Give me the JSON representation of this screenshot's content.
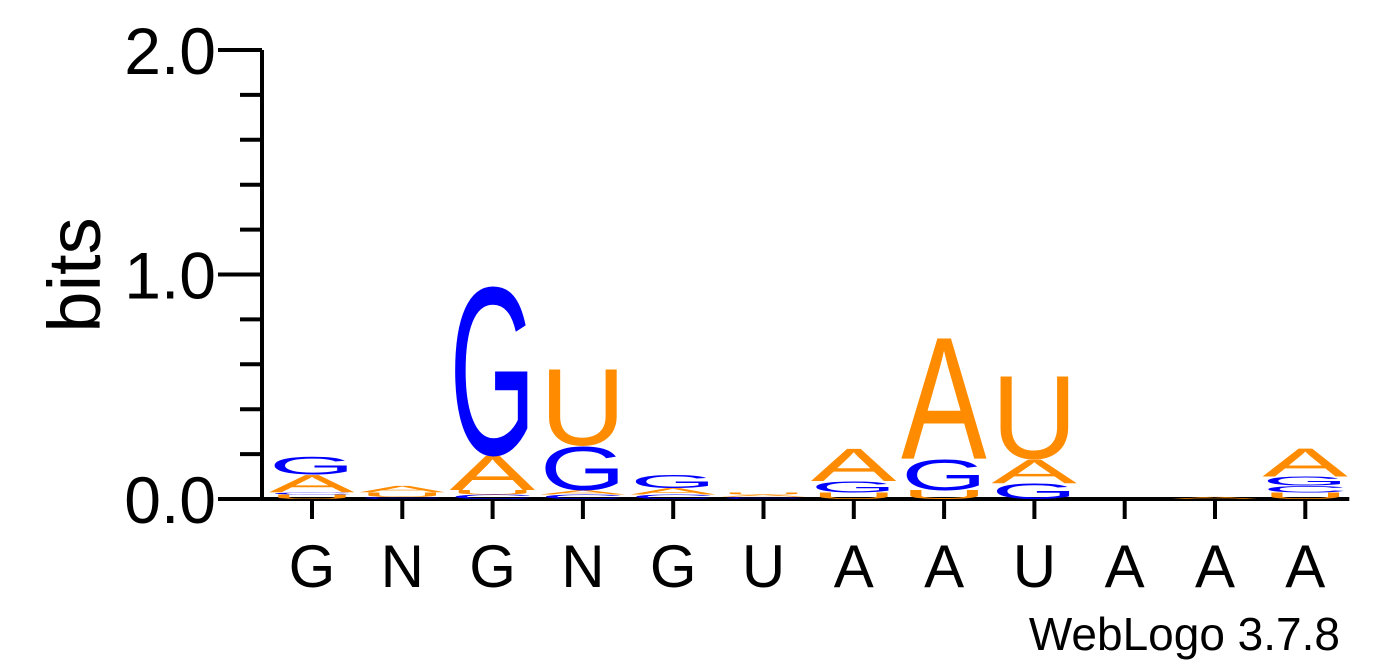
{
  "chart_data": {
    "type": "sequence-logo",
    "ylabel": "bits",
    "ylim": [
      0,
      2.0
    ],
    "yticks": [
      "0.0",
      "1.0",
      "2.0"
    ],
    "x_labels": [
      "G",
      "N",
      "G",
      "N",
      "G",
      "U",
      "A",
      "A",
      "U",
      "A",
      "A",
      "A"
    ],
    "colors": {
      "A": "#FF8C00",
      "U": "#FF8C00",
      "G": "#0000FF",
      "C": "#0000FF"
    },
    "positions": [
      {
        "label": "G",
        "stack": [
          {
            "letter": "U",
            "bits": 0.02
          },
          {
            "letter": "C",
            "bits": 0.01
          },
          {
            "letter": "A",
            "bits": 0.08
          },
          {
            "letter": "G",
            "bits": 0.08
          }
        ]
      },
      {
        "label": "N",
        "stack": [
          {
            "letter": "C",
            "bits": 0.01
          },
          {
            "letter": "U",
            "bits": 0.02
          },
          {
            "letter": "A",
            "bits": 0.03
          }
        ]
      },
      {
        "label": "G",
        "stack": [
          {
            "letter": "C",
            "bits": 0.02
          },
          {
            "letter": "U",
            "bits": 0.02
          },
          {
            "letter": "A",
            "bits": 0.16
          },
          {
            "letter": "G",
            "bits": 0.77
          }
        ]
      },
      {
        "label": "N",
        "stack": [
          {
            "letter": "C",
            "bits": 0.02
          },
          {
            "letter": "A",
            "bits": 0.02
          },
          {
            "letter": "G",
            "bits": 0.2
          },
          {
            "letter": "U",
            "bits": 0.35
          }
        ]
      },
      {
        "label": "G",
        "stack": [
          {
            "letter": "C",
            "bits": 0.02
          },
          {
            "letter": "A",
            "bits": 0.03
          },
          {
            "letter": "G",
            "bits": 0.06
          }
        ]
      },
      {
        "label": "U",
        "stack": [
          {
            "letter": "C",
            "bits": 0.01
          },
          {
            "letter": "A",
            "bits": 0.01
          },
          {
            "letter": "U",
            "bits": 0.01
          }
        ]
      },
      {
        "label": "A",
        "stack": [
          {
            "letter": "U",
            "bits": 0.03
          },
          {
            "letter": "G",
            "bits": 0.05
          },
          {
            "letter": "A",
            "bits": 0.15
          }
        ]
      },
      {
        "label": "A",
        "stack": [
          {
            "letter": "U",
            "bits": 0.04
          },
          {
            "letter": "G",
            "bits": 0.14
          },
          {
            "letter": "A",
            "bits": 0.56
          }
        ]
      },
      {
        "label": "U",
        "stack": [
          {
            "letter": "G",
            "bits": 0.07
          },
          {
            "letter": "A",
            "bits": 0.11
          },
          {
            "letter": "U",
            "bits": 0.38
          }
        ]
      },
      {
        "label": "A",
        "stack": []
      },
      {
        "label": "A",
        "stack": [
          {
            "letter": "A",
            "bits": 0.01
          }
        ]
      },
      {
        "label": "A",
        "stack": [
          {
            "letter": "U",
            "bits": 0.03
          },
          {
            "letter": "C",
            "bits": 0.03
          },
          {
            "letter": "G",
            "bits": 0.04
          },
          {
            "letter": "A",
            "bits": 0.13
          }
        ]
      }
    ]
  },
  "footer": {
    "credit": "WebLogo 3.7.8"
  }
}
